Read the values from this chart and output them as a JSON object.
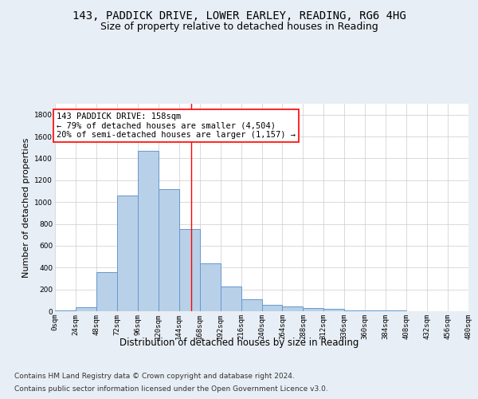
{
  "title1": "143, PADDICK DRIVE, LOWER EARLEY, READING, RG6 4HG",
  "title2": "Size of property relative to detached houses in Reading",
  "xlabel": "Distribution of detached houses by size in Reading",
  "ylabel": "Number of detached properties",
  "footnote1": "Contains HM Land Registry data © Crown copyright and database right 2024.",
  "footnote2": "Contains public sector information licensed under the Open Government Licence v3.0.",
  "bin_edges": [
    0,
    24,
    48,
    72,
    96,
    120,
    144,
    168,
    192,
    216,
    240,
    264,
    288,
    312,
    336,
    360,
    384,
    408,
    432,
    456,
    480
  ],
  "bar_heights": [
    10,
    35,
    360,
    1060,
    1470,
    1120,
    750,
    435,
    225,
    110,
    55,
    45,
    30,
    22,
    10,
    5,
    5,
    2,
    1,
    1
  ],
  "bar_color": "#b8d0e8",
  "bar_edge_color": "#6699cc",
  "vline_x": 158,
  "vline_color": "red",
  "annotation_text": "143 PADDICK DRIVE: 158sqm\n← 79% of detached houses are smaller (4,504)\n20% of semi-detached houses are larger (1,157) →",
  "annotation_box_color": "white",
  "annotation_box_edge_color": "red",
  "ylim": [
    0,
    1900
  ],
  "yticks": [
    0,
    200,
    400,
    600,
    800,
    1000,
    1200,
    1400,
    1600,
    1800
  ],
  "xlim": [
    0,
    480
  ],
  "bg_color": "#e8eef5",
  "plot_bg_color": "white",
  "grid_color": "#cccccc",
  "title1_fontsize": 10,
  "title2_fontsize": 9,
  "xlabel_fontsize": 8.5,
  "ylabel_fontsize": 8,
  "tick_fontsize": 6.5,
  "annotation_fontsize": 7.5,
  "footnote_fontsize": 6.5
}
